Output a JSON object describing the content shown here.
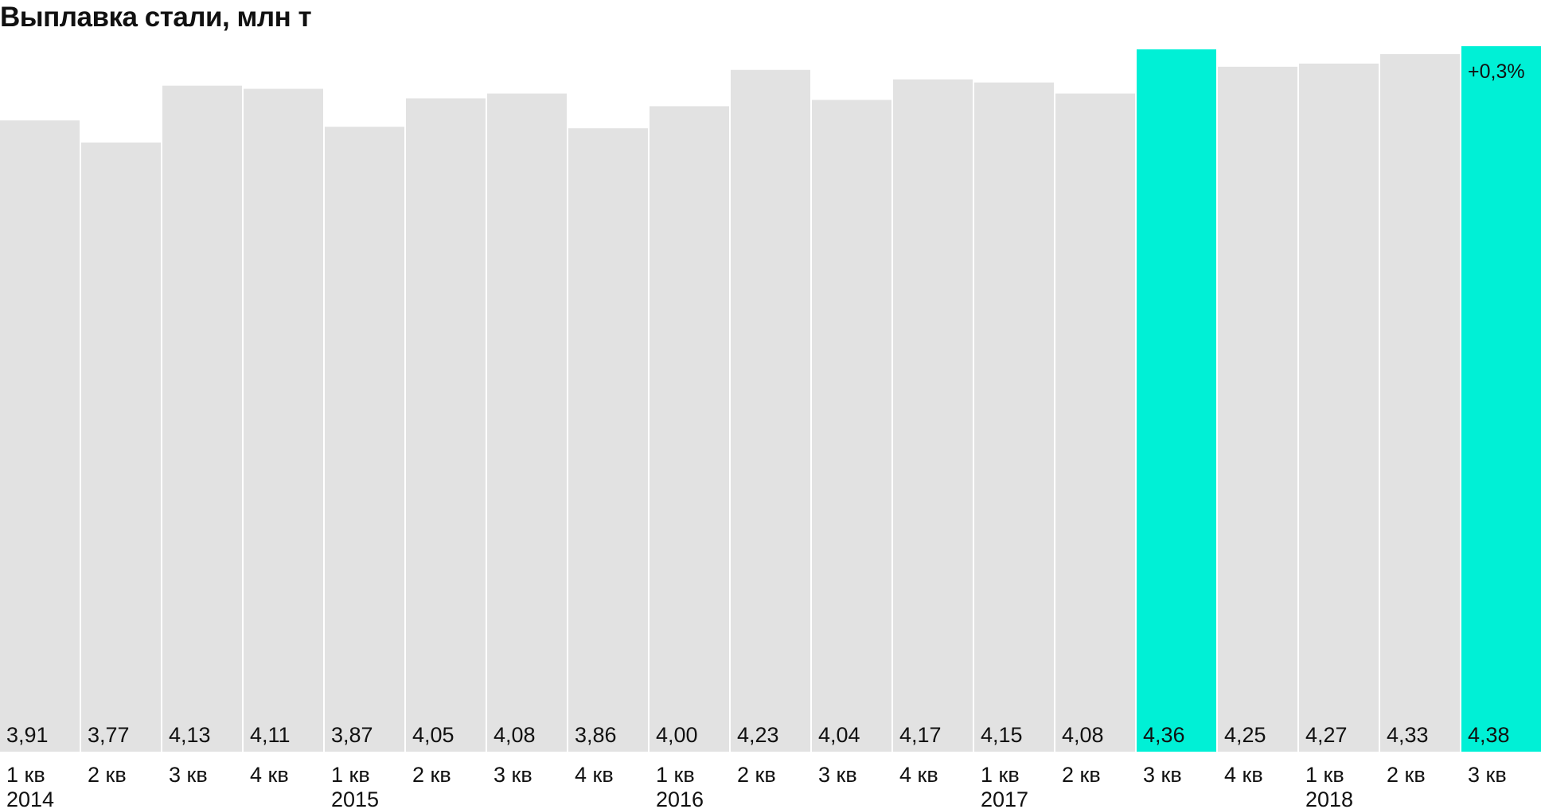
{
  "title": "Выплавка стали, млн т",
  "chart_data": {
    "type": "bar",
    "title": "Выплавка стали, млн т",
    "categories": [
      "1 кв 2014",
      "2 кв 2014",
      "3 кв 2014",
      "4 кв 2014",
      "1 кв 2015",
      "2 кв 2015",
      "3 кв 2015",
      "4 кв 2015",
      "1 кв 2016",
      "2 кв 2016",
      "3 кв 2016",
      "4 кв 2016",
      "1 кв 2017",
      "2 кв 2017",
      "3 кв 2017",
      "4 кв 2017",
      "1 кв 2018",
      "2 кв 2018",
      "3 кв 2018"
    ],
    "quarter_labels": [
      "1 кв",
      "2 кв",
      "3 кв",
      "4 кв",
      "1 кв",
      "2 кв",
      "3 кв",
      "4 кв",
      "1 кв",
      "2 кв",
      "3 кв",
      "4 кв",
      "1 кв",
      "2 кв",
      "3 кв",
      "4 кв",
      "1 кв",
      "2 кв",
      "3 кв"
    ],
    "year_labels": [
      "2014",
      "",
      "",
      "",
      "2015",
      "",
      "",
      "",
      "2016",
      "",
      "",
      "",
      "2017",
      "",
      "",
      "",
      "2018",
      "",
      ""
    ],
    "values": [
      3.91,
      3.77,
      4.13,
      4.11,
      3.87,
      4.05,
      4.08,
      3.86,
      4.0,
      4.23,
      4.04,
      4.17,
      4.15,
      4.08,
      4.36,
      4.25,
      4.27,
      4.33,
      4.38
    ],
    "value_labels": [
      "3,91",
      "3,77",
      "4,13",
      "4,11",
      "3,87",
      "4,05",
      "4,08",
      "3,86",
      "4,00",
      "4,23",
      "4,04",
      "4,17",
      "4,15",
      "4,08",
      "4,36",
      "4,25",
      "4,27",
      "4,33",
      "4,38"
    ],
    "highlight": [
      false,
      false,
      false,
      false,
      false,
      false,
      false,
      false,
      false,
      false,
      false,
      false,
      false,
      false,
      true,
      false,
      false,
      false,
      true
    ],
    "annotation": {
      "index": 18,
      "text": "+0,3%"
    },
    "colors": {
      "bar": "#e2e2e2",
      "highlight": "#00f0d6",
      "text": "#111111"
    },
    "xlabel": "",
    "ylabel": "",
    "grid": false,
    "legend": "none"
  }
}
